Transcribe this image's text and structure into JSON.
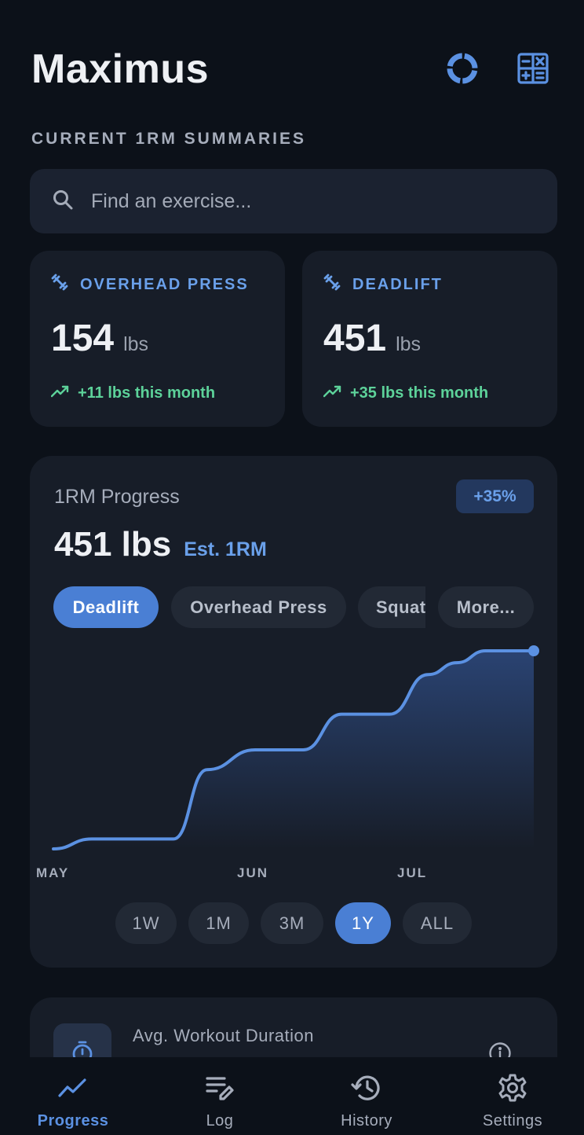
{
  "app": {
    "title": "Maximus"
  },
  "header": {
    "icons": [
      "donut-chart-icon",
      "calculator-icon"
    ]
  },
  "section_label": "CURRENT 1RM SUMMARIES",
  "search": {
    "placeholder": "Find an exercise...",
    "value": ""
  },
  "summaries": [
    {
      "name": "OVERHEAD PRESS",
      "value": "154",
      "unit": "lbs",
      "trend": "+11 lbs this month",
      "icon": "dumbbell-icon",
      "trend_icon": "trending-up-icon"
    },
    {
      "name": "DEADLIFT",
      "value": "451",
      "unit": "lbs",
      "trend": "+35 lbs this month",
      "icon": "dumbbell-icon",
      "trend_icon": "trending-up-icon"
    }
  ],
  "progress": {
    "label": "1RM Progress",
    "badge": "+35%",
    "value": "451 lbs",
    "est_label": "Est. 1RM",
    "chips": [
      {
        "label": "Deadlift",
        "active": true
      },
      {
        "label": "Overhead Press",
        "active": false
      },
      {
        "label": "Squat",
        "active": false
      },
      {
        "label": "More...",
        "active": false
      }
    ],
    "ranges": [
      {
        "label": "1W",
        "active": false
      },
      {
        "label": "1M",
        "active": false
      },
      {
        "label": "3M",
        "active": false
      },
      {
        "label": "1Y",
        "active": true
      },
      {
        "label": "ALL",
        "active": false
      }
    ]
  },
  "chart_data": {
    "type": "area",
    "title": "",
    "xlabel": "",
    "ylabel": "",
    "x_tick_labels": [
      "MAY",
      "JUN",
      "JUL"
    ],
    "x": [
      0,
      0.08,
      0.25,
      0.32,
      0.42,
      0.52,
      0.6,
      0.7,
      0.78,
      0.84,
      0.9,
      1.0
    ],
    "series": [
      {
        "values": [
          0.0,
          0.05,
          0.05,
          0.4,
          0.5,
          0.5,
          0.68,
          0.68,
          0.88,
          0.94,
          1.0,
          1.0
        ]
      }
    ],
    "ylim": [
      0,
      1
    ],
    "grid": false,
    "colors": {
      "line": "#5b91e2",
      "fill": "#2b4576"
    }
  },
  "avg_card": {
    "label": "Avg. Workout Duration",
    "icon": "stopwatch-icon",
    "info_icon": "info-icon"
  },
  "tabs": [
    {
      "label": "Progress",
      "icon": "trending-up-icon",
      "active": true
    },
    {
      "label": "Log",
      "icon": "edit-list-icon",
      "active": false
    },
    {
      "label": "History",
      "icon": "history-icon",
      "active": false
    },
    {
      "label": "Settings",
      "icon": "gear-icon",
      "active": false
    }
  ],
  "colors": {
    "accent": "#4a7fd4",
    "accent_text": "#6aa0ea",
    "positive": "#5dd29a",
    "background": "#0c1119",
    "card": "#171d28"
  }
}
